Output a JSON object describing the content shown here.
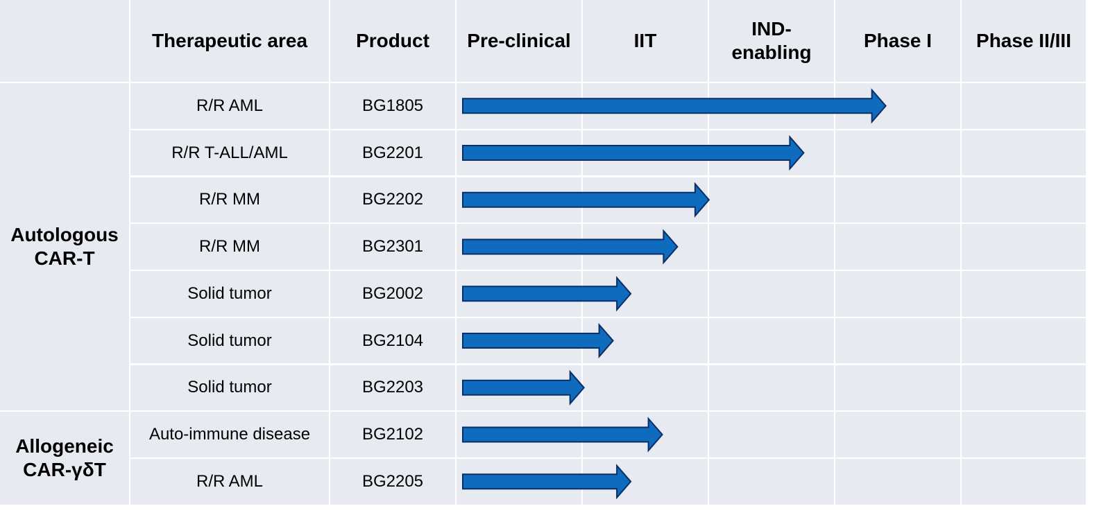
{
  "header": {
    "therapeutic_area": "Therapeutic area",
    "product": "Product",
    "phases": [
      "Pre-clinical",
      "IIT",
      "IND-\nenabling",
      "Phase I",
      "Phase II/III"
    ]
  },
  "groups": [
    {
      "label": "Autologous\nCAR-T",
      "rows": 7
    },
    {
      "label": "Allogeneic\nCAR-γδT",
      "rows": 2
    }
  ],
  "rows": [
    {
      "area": "R/R AML",
      "product": "BG1805",
      "progress": 3.35
    },
    {
      "area": "R/R T-ALL/AML",
      "product": "BG2201",
      "progress": 2.7
    },
    {
      "area": "R/R MM",
      "product": "BG2202",
      "progress": 1.95
    },
    {
      "area": "R/R MM",
      "product": "BG2301",
      "progress": 1.7
    },
    {
      "area": "Solid tumor",
      "product": "BG2002",
      "progress": 1.33
    },
    {
      "area": "Solid tumor",
      "product": "BG2104",
      "progress": 1.19
    },
    {
      "area": "Solid tumor",
      "product": "BG2203",
      "progress": 0.96
    },
    {
      "area": "Auto-immune disease",
      "product": "BG2102",
      "progress": 1.58
    },
    {
      "area": "R/R AML",
      "product": "BG2205",
      "progress": 1.33
    }
  ],
  "colors": {
    "cell_bg": "#e8eaf2",
    "arrow_fill": "#0e6bbd",
    "arrow_stroke": "#0a2e66"
  }
}
